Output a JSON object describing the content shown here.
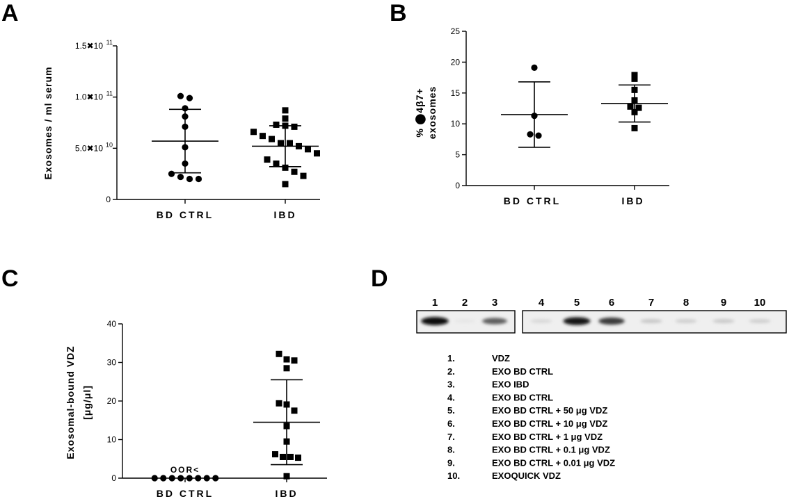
{
  "chart_data": [
    {
      "panel": "A",
      "type": "scatter",
      "ylabel": "Exosomes / ml serum",
      "ylim": [
        0,
        150000000000
      ],
      "y_ticks": [
        {
          "value": 0,
          "label": "0"
        },
        {
          "value": 50000000000,
          "label": "5.0✖10"
        },
        {
          "value": 100000000000,
          "label": "1.0✖10"
        },
        {
          "value": 150000000000,
          "label": "1.5✖10"
        }
      ],
      "y_tick_exponents": [
        "",
        "10",
        "11",
        "11"
      ],
      "categories": [
        "BD CTRL",
        "IBD"
      ],
      "series": [
        {
          "category": "BD CTRL",
          "marker": "circle",
          "mean": 57000000000,
          "sd": 31000000000,
          "values": [
            101000000000,
            99000000000,
            89000000000,
            81000000000,
            71000000000,
            51000000000,
            35000000000,
            25000000000,
            22000000000,
            20000000000,
            20000000000
          ]
        },
        {
          "category": "IBD",
          "marker": "square",
          "mean": 52000000000,
          "sd": 20000000000,
          "values": [
            87000000000,
            79000000000,
            73000000000,
            72000000000,
            71000000000,
            66000000000,
            62000000000,
            59000000000,
            55000000000,
            55000000000,
            52000000000,
            49000000000,
            45000000000,
            39000000000,
            35000000000,
            31000000000,
            27000000000,
            23000000000,
            15000000000
          ]
        }
      ]
    },
    {
      "panel": "B",
      "type": "scatter",
      "ylabel_line1": "% ⬤4β7+",
      "ylabel_line2": "exosomes",
      "ylim": [
        0,
        25
      ],
      "y_ticks": [
        {
          "value": 0,
          "label": "0"
        },
        {
          "value": 5,
          "label": "5"
        },
        {
          "value": 10,
          "label": "10"
        },
        {
          "value": 15,
          "label": "15"
        },
        {
          "value": 20,
          "label": "20"
        },
        {
          "value": 25,
          "label": "25"
        }
      ],
      "categories": [
        "BD CTRL",
        "IBD"
      ],
      "series": [
        {
          "category": "BD CTRL",
          "marker": "circle",
          "mean": 11.5,
          "sd": 5.3,
          "values": [
            19.1,
            11.3,
            8.3,
            8.1
          ]
        },
        {
          "category": "IBD",
          "marker": "square",
          "mean": 13.3,
          "sd": 3.0,
          "values": [
            17.9,
            17.3,
            15.5,
            13.8,
            12.8,
            12.6,
            11.9,
            9.3
          ]
        }
      ]
    },
    {
      "panel": "C",
      "type": "scatter",
      "ylabel_line1": "Exosomal-bound VDZ",
      "ylabel_line2": "[μg/μl]",
      "ylim": [
        0,
        40
      ],
      "y_ticks": [
        {
          "value": 0,
          "label": "0"
        },
        {
          "value": 10,
          "label": "10"
        },
        {
          "value": 20,
          "label": "20"
        },
        {
          "value": 30,
          "label": "30"
        },
        {
          "value": 40,
          "label": "40"
        }
      ],
      "categories": [
        "BD CTRL",
        "IBD"
      ],
      "annotation": "OOR<",
      "series": [
        {
          "category": "BD CTRL",
          "marker": "circle",
          "mean": 0,
          "sd": 0,
          "values": [
            0,
            0,
            0,
            0,
            0,
            0,
            0,
            0
          ]
        },
        {
          "category": "IBD",
          "marker": "square",
          "mean": 14.5,
          "sd": 11.0,
          "values": [
            32.2,
            30.8,
            30.5,
            28.5,
            19.4,
            19.1,
            17.5,
            13.5,
            9.5,
            6.2,
            5.5,
            5.3,
            5.5,
            0.5
          ]
        }
      ]
    }
  ],
  "panels": {
    "A": "A",
    "B": "B",
    "C": "C",
    "D": "D"
  },
  "blot": {
    "lanes": [
      "1",
      "2",
      "3",
      "4",
      "5",
      "6",
      "7",
      "8",
      "9",
      "10"
    ],
    "band_intensity": [
      0.95,
      0.02,
      0.6,
      0.08,
      0.9,
      0.75,
      0.15,
      0.12,
      0.14,
      0.12
    ],
    "legend": [
      {
        "num": "1.",
        "text": "VDZ"
      },
      {
        "num": "2.",
        "text": "EXO BD CTRL"
      },
      {
        "num": "3.",
        "text": "EXO IBD"
      },
      {
        "num": "4.",
        "text": "EXO BD CTRL"
      },
      {
        "num": "5.",
        "text": "EXO BD CTRL + 50 μg VDZ"
      },
      {
        "num": "6.",
        "text": "EXO BD CTRL + 10 μg VDZ"
      },
      {
        "num": "7.",
        "text": "EXO BD CTRL + 1 μg VDZ"
      },
      {
        "num": "8.",
        "text": "EXO BD CTRL + 0.1 μg VDZ"
      },
      {
        "num": "9.",
        "text": "EXO BD CTRL + 0.01 μg VDZ"
      },
      {
        "num": "10.",
        "text": "EXOQUICK VDZ"
      }
    ]
  }
}
